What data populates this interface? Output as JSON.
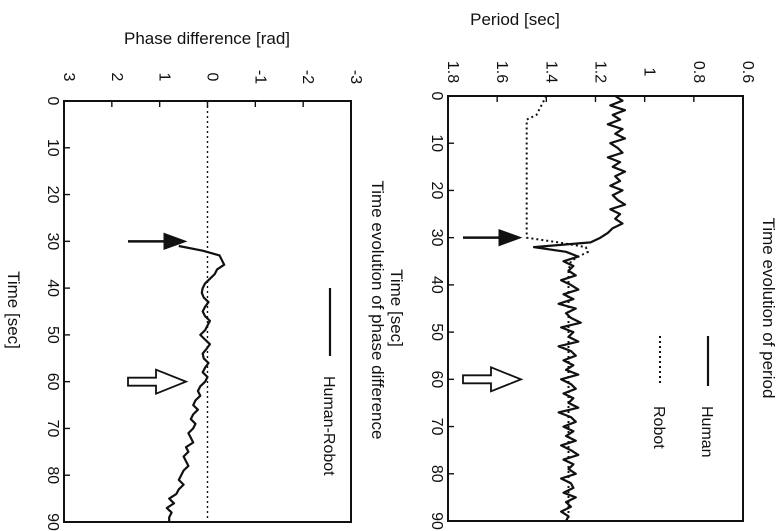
{
  "chart_data": [
    {
      "type": "line",
      "title": "Time evolution of period",
      "xlabel": "Time [sec]",
      "ylabel": "Period [sec]",
      "xlim": [
        0,
        90
      ],
      "ylim": [
        0.6,
        1.8
      ],
      "x_ticks": [
        "0",
        "10",
        "20",
        "30",
        "40",
        "50",
        "60",
        "70",
        "80",
        "90"
      ],
      "y_ticks": [
        "0.6",
        "0.8",
        "1",
        "1.2",
        "1.4",
        "1.6",
        "1.8"
      ],
      "orientation": "rotated 90 degrees clockwise",
      "legend": {
        "placement": "top-right"
      },
      "series": [
        {
          "name": "Human",
          "style": "solid",
          "x": [
            0,
            1,
            2,
            3,
            4,
            5,
            6,
            7,
            8,
            9,
            10,
            11,
            12,
            13,
            14,
            15,
            16,
            17,
            18,
            19,
            20,
            21,
            22,
            23,
            24,
            25,
            26,
            27,
            28,
            29,
            30,
            31,
            32,
            33,
            34,
            35,
            36,
            37,
            38,
            39,
            40,
            41,
            42,
            43,
            44,
            45,
            46,
            47,
            48,
            49,
            50,
            51,
            52,
            53,
            54,
            55,
            56,
            57,
            58,
            59,
            60,
            61,
            62,
            63,
            64,
            65,
            66,
            67,
            68,
            69,
            70,
            71,
            72,
            73,
            74,
            75,
            76,
            77,
            78,
            79,
            80,
            81,
            82,
            83,
            84,
            85,
            86,
            87,
            88,
            89,
            90
          ],
          "y": [
            1.12,
            1.09,
            1.14,
            1.08,
            1.13,
            1.1,
            1.15,
            1.09,
            1.12,
            1.08,
            1.14,
            1.11,
            1.09,
            1.15,
            1.1,
            1.13,
            1.08,
            1.12,
            1.1,
            1.14,
            1.09,
            1.13,
            1.11,
            1.08,
            1.14,
            1.1,
            1.12,
            1.09,
            1.13,
            1.15,
            1.18,
            1.22,
            1.45,
            1.32,
            1.27,
            1.33,
            1.29,
            1.31,
            1.28,
            1.34,
            1.3,
            1.27,
            1.33,
            1.29,
            1.35,
            1.28,
            1.32,
            1.3,
            1.26,
            1.34,
            1.29,
            1.31,
            1.27,
            1.35,
            1.3,
            1.28,
            1.33,
            1.29,
            1.32,
            1.27,
            1.34,
            1.3,
            1.28,
            1.33,
            1.29,
            1.31,
            1.27,
            1.35,
            1.3,
            1.28,
            1.33,
            1.29,
            1.32,
            1.28,
            1.34,
            1.3,
            1.27,
            1.33,
            1.29,
            1.31,
            1.28,
            1.34,
            1.3,
            1.29,
            1.33,
            1.28,
            1.32,
            1.3,
            1.34,
            1.31,
            1.32
          ]
        },
        {
          "name": "Robot",
          "style": "dotted",
          "x": [
            0,
            2,
            4,
            5,
            10,
            20,
            30,
            31,
            32,
            33,
            34,
            35,
            37,
            40,
            50,
            60,
            70,
            80,
            90
          ],
          "y": [
            1.4,
            1.42,
            1.44,
            1.48,
            1.48,
            1.48,
            1.48,
            1.35,
            1.24,
            1.23,
            1.27,
            1.3,
            1.31,
            1.31,
            1.31,
            1.31,
            1.31,
            1.31,
            1.31
          ]
        }
      ],
      "annotations": [
        {
          "type": "arrow",
          "style": "filled",
          "x": 30
        },
        {
          "type": "arrow",
          "style": "open",
          "x": 60
        }
      ]
    },
    {
      "type": "line",
      "title": "Time evolution of phase difference",
      "xlabel": "Time [sec]",
      "ylabel": "Phase difference [rad]",
      "xlim": [
        0,
        90
      ],
      "ylim": [
        -3,
        3
      ],
      "x_ticks": [
        "0",
        "10",
        "20",
        "30",
        "40",
        "50",
        "60",
        "70",
        "80",
        "90"
      ],
      "y_ticks": [
        "-3",
        "-2",
        "-1",
        "0",
        "1",
        "2",
        "3"
      ],
      "orientation": "rotated 90 degrees clockwise",
      "reference_line": {
        "y": 0,
        "style": "dotted"
      },
      "legend": {
        "placement": "top-right"
      },
      "series": [
        {
          "name": "Human-Robot",
          "style": "solid",
          "x": [
            31,
            32,
            33,
            34,
            35,
            36,
            37,
            38,
            39,
            40,
            41,
            42,
            43,
            44,
            45,
            46,
            47,
            48,
            49,
            50,
            51,
            52,
            53,
            54,
            55,
            56,
            57,
            58,
            59,
            60,
            61,
            62,
            63,
            64,
            65,
            66,
            67,
            68,
            69,
            70,
            71,
            72,
            73,
            74,
            75,
            76,
            77,
            78,
            79,
            80,
            81,
            82,
            83,
            84,
            85,
            86,
            87,
            88,
            89,
            90
          ],
          "y": [
            0.6,
            0.1,
            -0.25,
            -0.3,
            -0.35,
            -0.2,
            -0.15,
            -0.05,
            0.05,
            0.1,
            0.12,
            0.08,
            -0.02,
            0.05,
            0.1,
            0.05,
            -0.05,
            0.0,
            0.05,
            0.15,
            0.05,
            -0.05,
            0.02,
            0.1,
            0.08,
            -0.02,
            0.05,
            0.1,
            0.0,
            0.05,
            0.15,
            0.2,
            0.15,
            0.25,
            0.3,
            0.2,
            0.3,
            0.35,
            0.25,
            0.3,
            0.4,
            0.35,
            0.3,
            0.45,
            0.4,
            0.5,
            0.45,
            0.4,
            0.5,
            0.55,
            0.6,
            0.5,
            0.6,
            0.65,
            0.8,
            0.7,
            0.85,
            0.75,
            0.8,
            0.8
          ]
        }
      ],
      "annotations": [
        {
          "type": "arrow",
          "style": "filled",
          "x": 30
        },
        {
          "type": "arrow",
          "style": "open",
          "x": 60
        }
      ]
    }
  ]
}
